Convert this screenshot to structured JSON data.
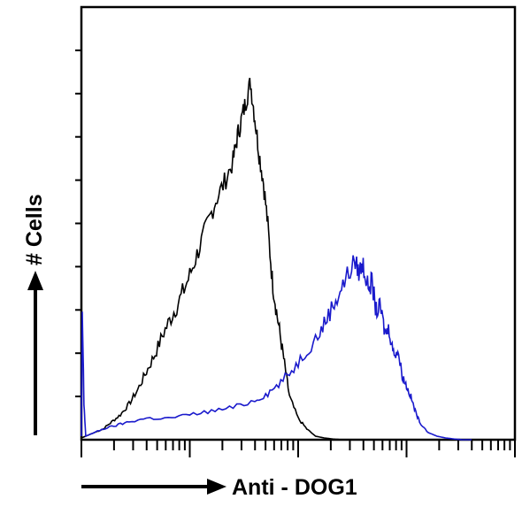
{
  "chart_data": {
    "type": "line",
    "xlabel": "Anti - DOG1",
    "ylabel": "# Cells",
    "xscale": "log",
    "xlim": [
      0,
      100
    ],
    "ylim": [
      0,
      100
    ],
    "grid": false,
    "series": [
      {
        "color": "#000000",
        "x": [
          0,
          1,
          3,
          5,
          7,
          9,
          11,
          13,
          15,
          17,
          19,
          21,
          23,
          25,
          27,
          29,
          31,
          33,
          35,
          36,
          37,
          38,
          39,
          40,
          41,
          42,
          43,
          44,
          45,
          46,
          47,
          48,
          50,
          52,
          54,
          56,
          58,
          60,
          62
        ],
        "y": [
          0.5,
          1,
          2,
          3,
          5,
          7,
          10,
          14,
          19,
          24,
          30,
          35,
          40,
          46,
          53,
          60,
          67,
          72,
          78,
          85,
          90,
          95,
          100,
          90,
          80,
          72,
          60,
          45,
          36,
          28,
          20,
          12,
          6,
          3,
          1,
          0.5,
          0.2,
          0,
          0
        ]
      },
      {
        "color": "#1a1acc",
        "x": [
          0,
          0.2,
          0.6,
          1,
          3,
          5,
          8,
          11,
          15,
          20,
          25,
          30,
          35,
          40,
          43,
          46,
          49,
          52,
          55,
          57,
          59,
          61,
          63,
          64,
          65,
          66,
          67,
          68,
          69,
          70,
          71,
          72,
          73,
          74,
          75,
          76,
          77,
          78,
          80,
          82,
          84,
          86,
          88,
          90
        ],
        "y": [
          1,
          36,
          10,
          1,
          2,
          3,
          4,
          5,
          6,
          6,
          7,
          8,
          9,
          11,
          13,
          16,
          20,
          25,
          30,
          35,
          40,
          45,
          50,
          47,
          49,
          43,
          44,
          36,
          37,
          30,
          31,
          24,
          25,
          18,
          15,
          12,
          8,
          5,
          2,
          1,
          0.5,
          0.2,
          0,
          0
        ]
      }
    ]
  }
}
